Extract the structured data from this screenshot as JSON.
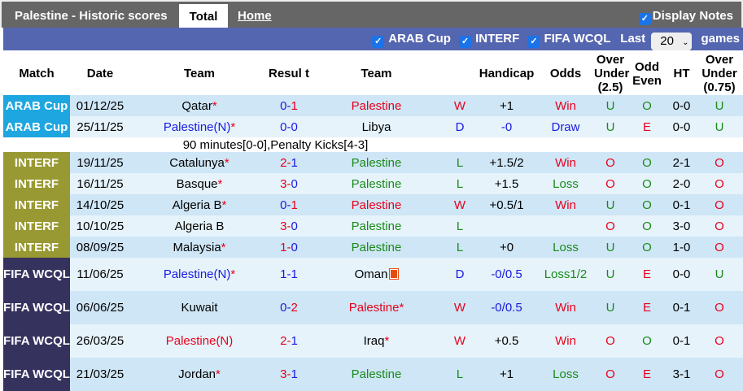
{
  "header": {
    "title": "Palestine - Historic scores",
    "tabs": [
      {
        "label": "Total",
        "active": true
      },
      {
        "label": "Home",
        "active": false
      }
    ],
    "display_notes": "Display Notes"
  },
  "filters": {
    "items": [
      "ARAB Cup",
      "INTERF",
      "FIFA WCQL"
    ],
    "last_label": "Last",
    "last_value": "20",
    "games_label": "games"
  },
  "columns": [
    "Match",
    "Date",
    "Team",
    "Resul t",
    "Team",
    "",
    "Handicap",
    "Odds",
    "Over Under (2.5)",
    "Odd Even",
    "HT",
    "Over Under (0.75)"
  ],
  "colors": {
    "ARAB Cup": "#1ea6e0",
    "INTERF": "#999933",
    "FIFA WCQL": "#35325e",
    "red": "#e8001c",
    "blue": "#1a1ae0",
    "green": "#1a8a1a"
  },
  "rows": [
    {
      "comp": "ARAB Cup",
      "date": "01/12/25",
      "home": "Qatar",
      "home_star": "*",
      "home_color": "black",
      "s1": "0",
      "s2": "1",
      "s1c": "blue",
      "s2c": "red",
      "away": "Palestine",
      "away_star": "",
      "away_color": "red",
      "wl": "W",
      "hcap": "+1",
      "odds": "Win",
      "ou": "U",
      "oe": "O",
      "ht": "0-0",
      "ou2": "U"
    },
    {
      "comp": "ARAB Cup",
      "date": "25/11/25",
      "home": "Palestine(N)",
      "home_star": "*",
      "home_color": "blue",
      "s1": "0",
      "s2": "0",
      "s1c": "blue",
      "s2c": "blue",
      "away": "Libya",
      "away_star": "",
      "away_color": "black",
      "wl": "D",
      "hcap": "-0",
      "odds": "Draw",
      "ou": "U",
      "oe": "E",
      "ht": "0-0",
      "ou2": "U",
      "note": "90 minutes[0-0],Penalty Kicks[4-3]"
    },
    {
      "comp": "INTERF",
      "date": "19/11/25",
      "home": "Catalunya",
      "home_star": "*",
      "home_color": "black",
      "s1": "2",
      "s2": "1",
      "s1c": "red",
      "s2c": "blue",
      "away": "Palestine",
      "away_star": "",
      "away_color": "green",
      "wl": "L",
      "hcap": "+1.5/2",
      "odds": "Win",
      "ou": "O",
      "oe": "O",
      "ht": "2-1",
      "ou2": "O"
    },
    {
      "comp": "INTERF",
      "date": "16/11/25",
      "home": "Basque",
      "home_star": "*",
      "home_color": "black",
      "s1": "3",
      "s2": "0",
      "s1c": "red",
      "s2c": "blue",
      "away": "Palestine",
      "away_star": "",
      "away_color": "green",
      "wl": "L",
      "hcap": "+1.5",
      "odds": "Loss",
      "ou": "O",
      "oe": "O",
      "ht": "2-0",
      "ou2": "O"
    },
    {
      "comp": "INTERF",
      "date": "14/10/25",
      "home": "Algeria B",
      "home_star": "*",
      "home_color": "black",
      "s1": "0",
      "s2": "1",
      "s1c": "blue",
      "s2c": "red",
      "away": "Palestine",
      "away_star": "",
      "away_color": "red",
      "wl": "W",
      "hcap": "+0.5/1",
      "odds": "Win",
      "ou": "U",
      "oe": "O",
      "ht": "0-1",
      "ou2": "O"
    },
    {
      "comp": "INTERF",
      "date": "10/10/25",
      "home": "Algeria B",
      "home_star": "",
      "home_color": "black",
      "s1": "3",
      "s2": "0",
      "s1c": "red",
      "s2c": "blue",
      "away": "Palestine",
      "away_star": "",
      "away_color": "green",
      "wl": "L",
      "hcap": "",
      "odds": "",
      "ou": "O",
      "oe": "O",
      "ht": "3-0",
      "ou2": "O"
    },
    {
      "comp": "INTERF",
      "date": "08/09/25",
      "home": "Malaysia",
      "home_star": "*",
      "home_color": "black",
      "s1": "1",
      "s2": "0",
      "s1c": "red",
      "s2c": "blue",
      "away": "Palestine",
      "away_star": "",
      "away_color": "green",
      "wl": "L",
      "hcap": "+0",
      "odds": "Loss",
      "ou": "U",
      "oe": "O",
      "ht": "1-0",
      "ou2": "O"
    },
    {
      "comp": "FIFA WCQL",
      "date": "11/06/25",
      "home": "Palestine(N)",
      "home_star": "*",
      "home_color": "blue",
      "s1": "1",
      "s2": "1",
      "s1c": "blue",
      "s2c": "blue",
      "away": "Oman",
      "away_star": "",
      "away_flag": "red-card-icon",
      "away_color": "black",
      "wl": "D",
      "hcap": "-0/0.5",
      "odds": "Loss1/2",
      "ou": "U",
      "oe": "E",
      "ht": "0-0",
      "ou2": "U"
    },
    {
      "comp": "FIFA WCQL",
      "date": "06/06/25",
      "home": "Kuwait",
      "home_star": "",
      "home_color": "black",
      "s1": "0",
      "s2": "2",
      "s1c": "blue",
      "s2c": "red",
      "away": "Palestine",
      "away_star": "*",
      "away_color": "red",
      "wl": "W",
      "hcap": "-0/0.5",
      "odds": "Win",
      "ou": "U",
      "oe": "E",
      "ht": "0-1",
      "ou2": "O"
    },
    {
      "comp": "FIFA WCQL",
      "date": "26/03/25",
      "home": "Palestine(N)",
      "home_star": "",
      "home_color": "red",
      "s1": "2",
      "s2": "1",
      "s1c": "red",
      "s2c": "blue",
      "away": "Iraq",
      "away_star": "*",
      "away_color": "black",
      "wl": "W",
      "hcap": "+0.5",
      "odds": "Win",
      "ou": "O",
      "oe": "O",
      "ht": "0-1",
      "ou2": "O"
    },
    {
      "comp": "FIFA WCQL",
      "date": "21/03/25",
      "home": "Jordan",
      "home_star": "*",
      "home_color": "black",
      "s1": "3",
      "s2": "1",
      "s1c": "red",
      "s2c": "blue",
      "away": "Palestine",
      "away_star": "",
      "away_color": "green",
      "wl": "L",
      "hcap": "+1",
      "odds": "Loss",
      "ou": "O",
      "oe": "E",
      "ht": "3-1",
      "ou2": "O"
    }
  ]
}
